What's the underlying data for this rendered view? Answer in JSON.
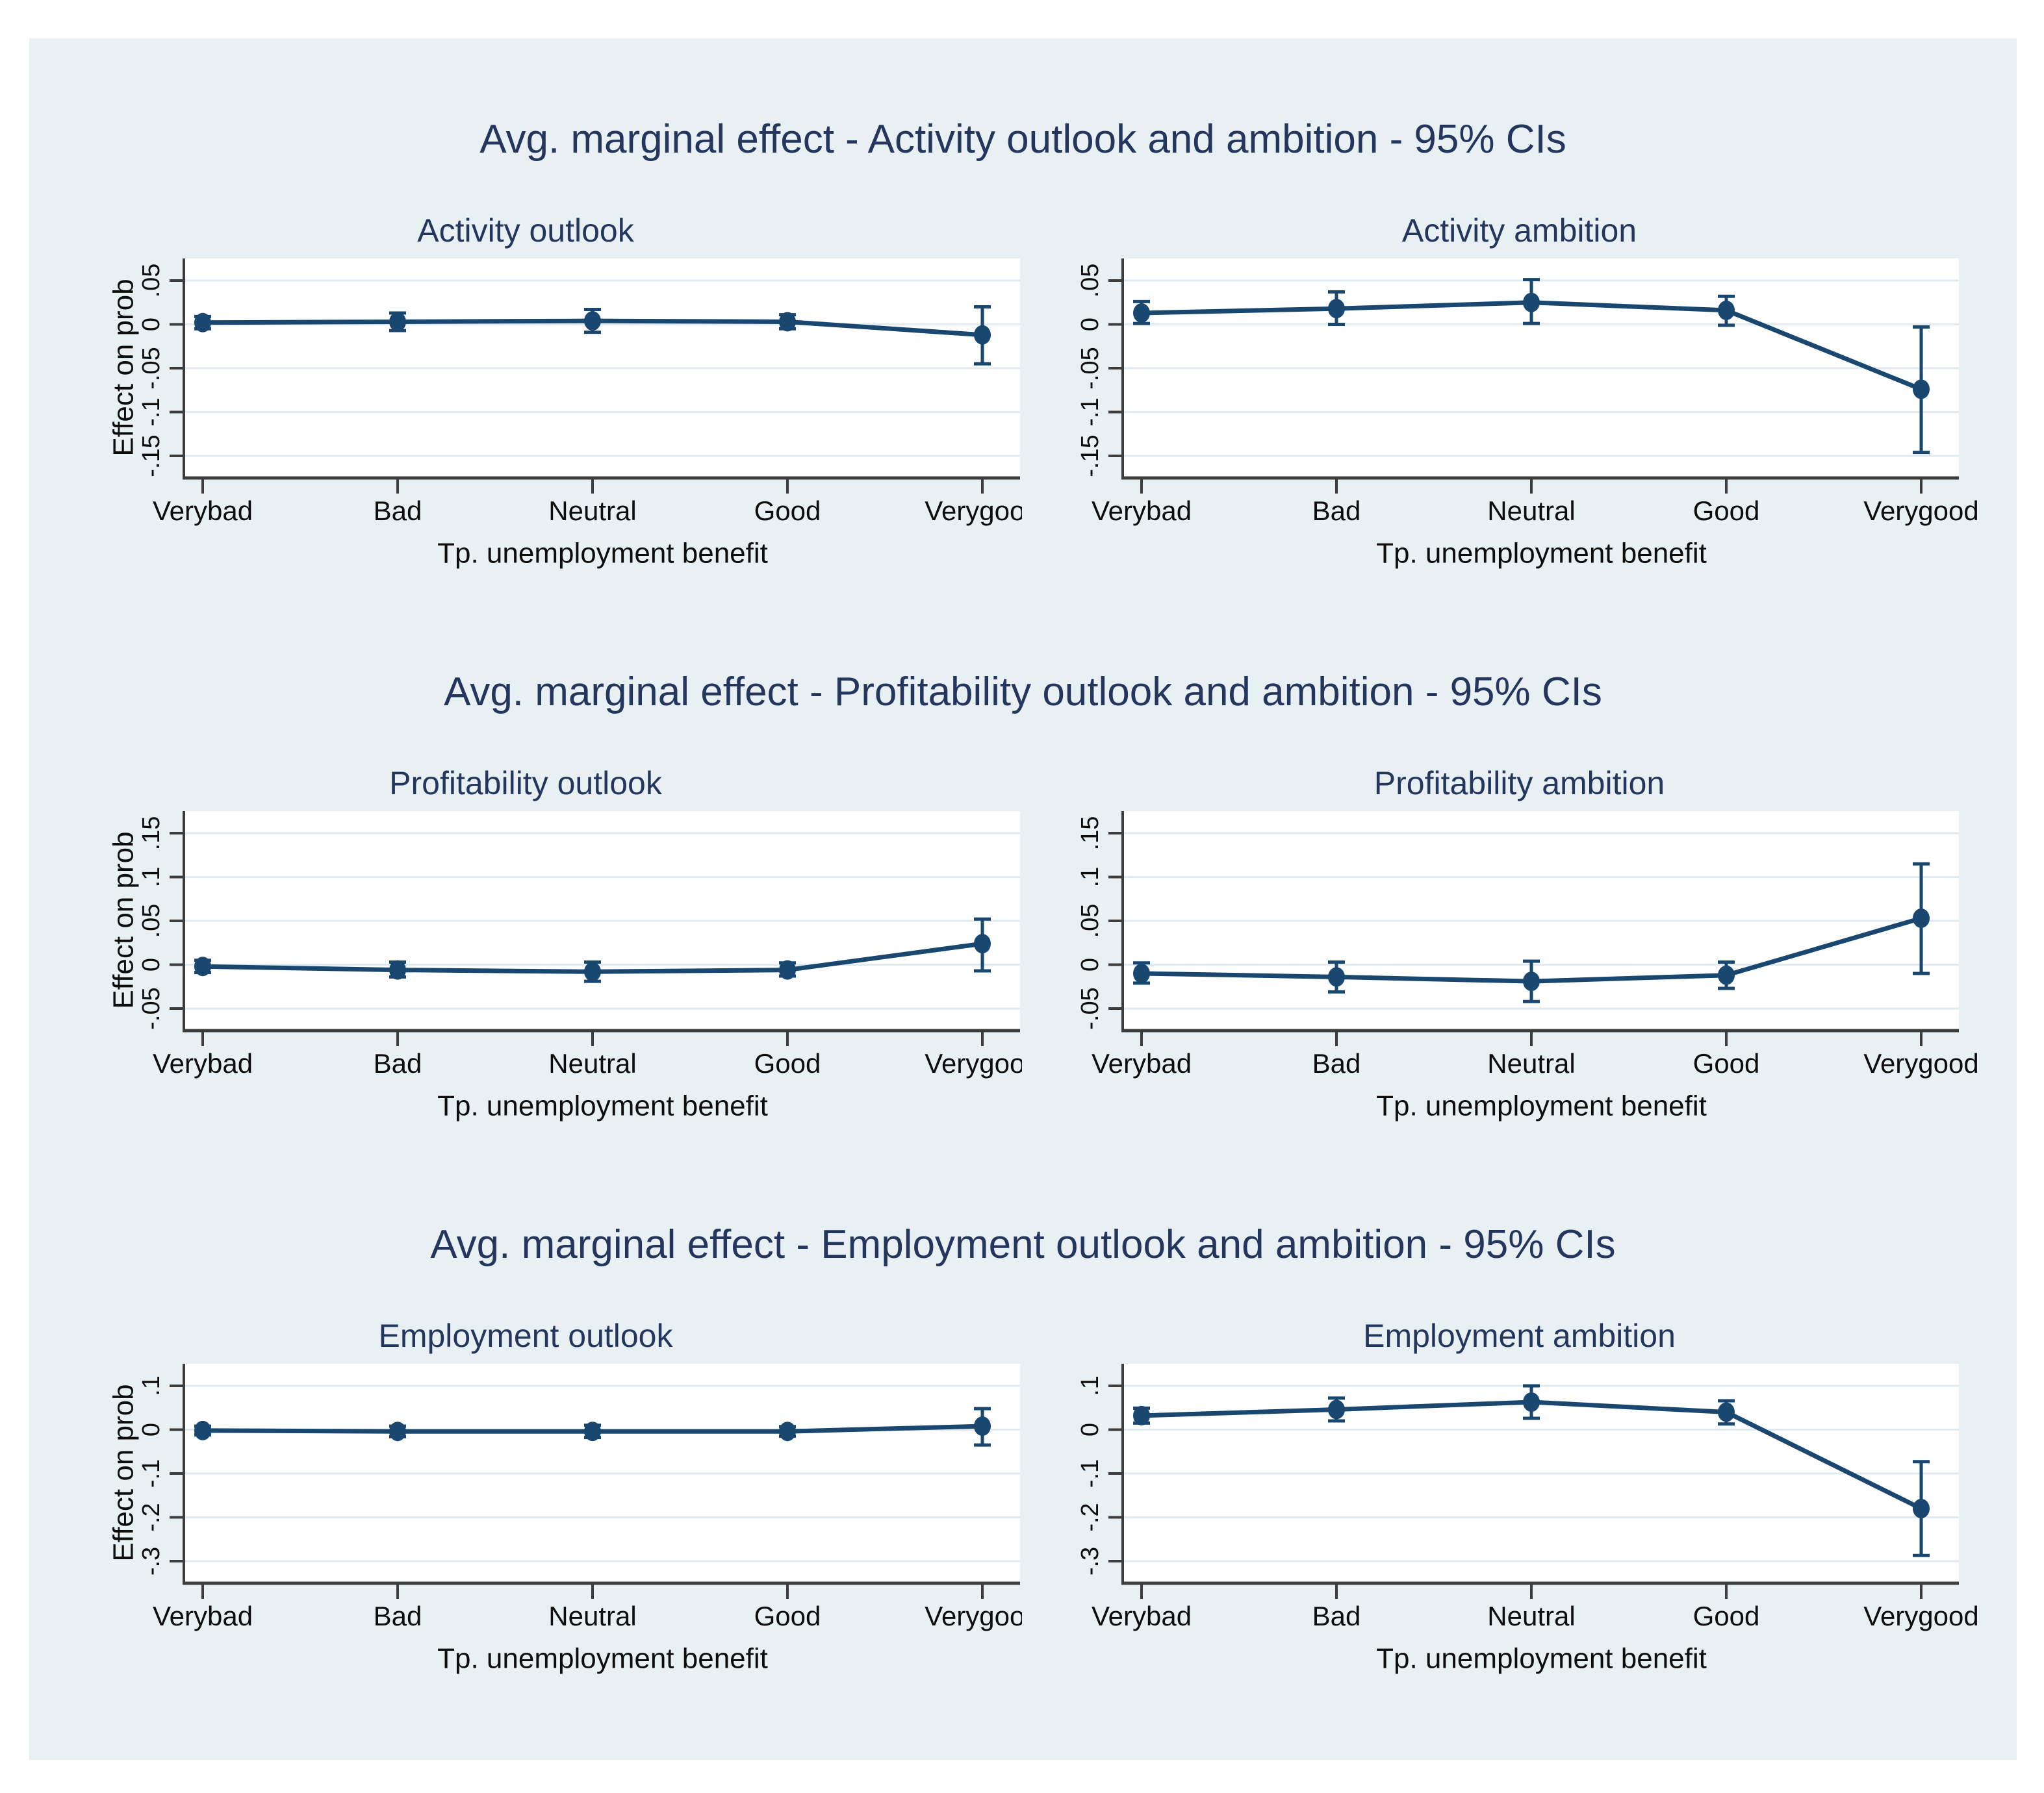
{
  "colors": {
    "page_background": "#ffffff",
    "canvas_background": "#e8f0f3",
    "plot_background": "#ffffff",
    "gridline": "#dfeaf1",
    "axis": "#3d3d3d",
    "series": "#1a476f",
    "title_text": "#24365e",
    "label_text": "#0d0d0d"
  },
  "chart_data": [
    {
      "type": "line",
      "figure_title": "Avg. marginal effect - Activity outlook and ambition - 95% CIs",
      "subtitle": "Activity outlook",
      "xlabel": "Tp. unemployment benefit",
      "ylabel": "Effect on prob",
      "x_categories": [
        "Verybad",
        "Bad",
        "Neutral",
        "Good",
        "Verygood"
      ],
      "ytick_labels": [
        ".05",
        "0",
        "-.05",
        "-.1",
        "-.15"
      ],
      "ytick_values": [
        0.05,
        0,
        -0.05,
        -0.1,
        -0.15
      ],
      "ylim": [
        -0.174,
        0.075
      ],
      "grid": "horizontal",
      "legend": "none",
      "series": [
        {
          "name": "Avg. marginal effect",
          "values": [
            0.002,
            0.003,
            0.004,
            0.003,
            -0.012
          ]
        }
      ],
      "ci_lower": [
        -0.005,
        -0.007,
        -0.009,
        -0.005,
        -0.045
      ],
      "ci_upper": [
        0.009,
        0.013,
        0.017,
        0.011,
        0.02
      ]
    },
    {
      "type": "line",
      "figure_title": "Avg. marginal effect - Activity outlook and ambition - 95% CIs",
      "subtitle": "Activity ambition",
      "xlabel": "Tp. unemployment benefit",
      "ylabel": "",
      "x_categories": [
        "Verybad",
        "Bad",
        "Neutral",
        "Good",
        "Verygood"
      ],
      "ytick_labels": [
        ".05",
        "0",
        "-.05",
        "-.1",
        "-.15"
      ],
      "ytick_values": [
        0.05,
        0,
        -0.05,
        -0.1,
        -0.15
      ],
      "ylim": [
        -0.174,
        0.075
      ],
      "grid": "horizontal",
      "legend": "none",
      "series": [
        {
          "name": "Avg. marginal effect",
          "values": [
            0.013,
            0.018,
            0.025,
            0.016,
            -0.074
          ]
        }
      ],
      "ci_lower": [
        0.001,
        0.0,
        0.001,
        -0.001,
        -0.146
      ],
      "ci_upper": [
        0.026,
        0.037,
        0.051,
        0.032,
        -0.003
      ]
    },
    {
      "type": "line",
      "figure_title": "Avg. marginal effect - Profitability outlook and ambition - 95% CIs",
      "subtitle": "Profitability outlook",
      "xlabel": "Tp. unemployment benefit",
      "ylabel": "Effect on prob",
      "x_categories": [
        "Verybad",
        "Bad",
        "Neutral",
        "Good",
        "Verygood"
      ],
      "ytick_labels": [
        ".15",
        ".1",
        ".05",
        "0",
        "-.05"
      ],
      "ytick_values": [
        0.15,
        0.1,
        0.05,
        0,
        -0.05
      ],
      "ylim": [
        -0.074,
        0.175
      ],
      "grid": "horizontal",
      "legend": "none",
      "series": [
        {
          "name": "Avg. marginal effect",
          "values": [
            -0.002,
            -0.006,
            -0.008,
            -0.006,
            0.024
          ]
        }
      ],
      "ci_lower": [
        -0.009,
        -0.014,
        -0.019,
        -0.013,
        -0.007
      ],
      "ci_upper": [
        0.005,
        0.003,
        0.003,
        0.002,
        0.052
      ]
    },
    {
      "type": "line",
      "figure_title": "Avg. marginal effect - Profitability outlook and ambition - 95% CIs",
      "subtitle": "Profitability ambition",
      "xlabel": "Tp. unemployment benefit",
      "ylabel": "",
      "x_categories": [
        "Verybad",
        "Bad",
        "Neutral",
        "Good",
        "Verygood"
      ],
      "ytick_labels": [
        ".15",
        ".1",
        ".05",
        "0",
        "-.05"
      ],
      "ytick_values": [
        0.15,
        0.1,
        0.05,
        0,
        -0.05
      ],
      "ylim": [
        -0.074,
        0.175
      ],
      "grid": "horizontal",
      "legend": "none",
      "series": [
        {
          "name": "Avg. marginal effect",
          "values": [
            -0.01,
            -0.014,
            -0.019,
            -0.012,
            0.053
          ]
        }
      ],
      "ci_lower": [
        -0.021,
        -0.031,
        -0.042,
        -0.027,
        -0.01
      ],
      "ci_upper": [
        0.002,
        0.003,
        0.004,
        0.003,
        0.115
      ]
    },
    {
      "type": "line",
      "figure_title": "Avg. marginal effect - Employment outlook and ambition - 95% CIs",
      "subtitle": "Employment outlook",
      "xlabel": "Tp. unemployment benefit",
      "ylabel": "Effect on prob",
      "x_categories": [
        "Verybad",
        "Bad",
        "Neutral",
        "Good",
        "Verygood"
      ],
      "ytick_labels": [
        ".1",
        "0",
        "-.1",
        "-.2",
        "-.3"
      ],
      "ytick_values": [
        0.1,
        0,
        -0.1,
        -0.2,
        -0.3
      ],
      "ylim": [
        -0.347,
        0.15
      ],
      "grid": "horizontal",
      "legend": "none",
      "series": [
        {
          "name": "Avg. marginal effect",
          "values": [
            -0.002,
            -0.004,
            -0.004,
            -0.004,
            0.008
          ]
        }
      ],
      "ci_lower": [
        -0.012,
        -0.016,
        -0.018,
        -0.015,
        -0.035
      ],
      "ci_upper": [
        0.008,
        0.008,
        0.01,
        0.007,
        0.048
      ]
    },
    {
      "type": "line",
      "figure_title": "Avg. marginal effect - Employment outlook and ambition - 95% CIs",
      "subtitle": "Employment ambition",
      "xlabel": "Tp. unemployment benefit",
      "ylabel": "",
      "x_categories": [
        "Verybad",
        "Bad",
        "Neutral",
        "Good",
        "Verygood"
      ],
      "ytick_labels": [
        ".1",
        "0",
        "-.1",
        "-.2",
        "-.3"
      ],
      "ytick_values": [
        0.1,
        0,
        -0.1,
        -0.2,
        -0.3
      ],
      "ylim": [
        -0.347,
        0.15
      ],
      "grid": "horizontal",
      "legend": "none",
      "series": [
        {
          "name": "Avg. marginal effect",
          "values": [
            0.032,
            0.046,
            0.063,
            0.04,
            -0.18
          ]
        }
      ],
      "ci_lower": [
        0.015,
        0.02,
        0.026,
        0.013,
        -0.287
      ],
      "ci_upper": [
        0.049,
        0.072,
        0.1,
        0.066,
        -0.073
      ]
    }
  ]
}
